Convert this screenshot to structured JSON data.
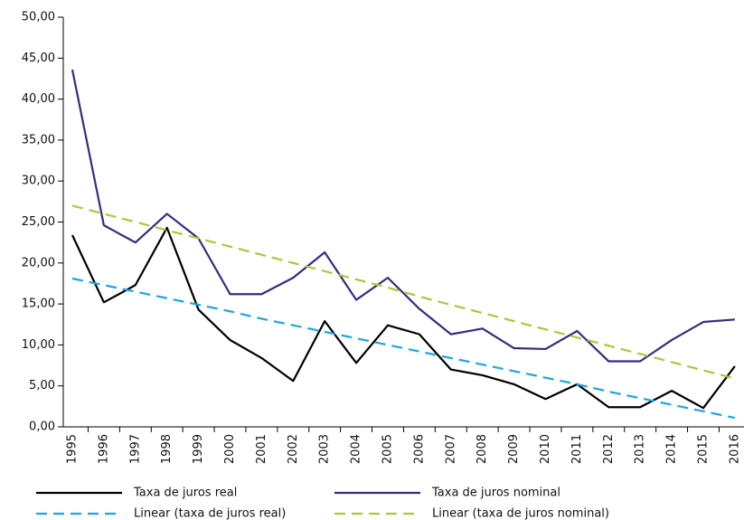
{
  "chart_data": {
    "type": "line",
    "categories": [
      "1995",
      "1996",
      "1997",
      "1998",
      "1999",
      "2000",
      "2001",
      "2002",
      "2003",
      "2004",
      "2005",
      "2006",
      "2007",
      "2008",
      "2009",
      "2010",
      "2011",
      "2012",
      "2013",
      "2014",
      "2015",
      "2016"
    ],
    "series": [
      {
        "name": "Taxa de juros real",
        "color": "#000000",
        "dashed": false,
        "values": [
          23.4,
          15.2,
          17.3,
          24.3,
          14.3,
          10.6,
          8.4,
          5.6,
          12.9,
          7.8,
          12.4,
          11.3,
          7.0,
          6.3,
          5.2,
          3.4,
          5.2,
          2.4,
          2.4,
          4.4,
          2.3,
          7.4
        ]
      },
      {
        "name": "Taxa de juros nominal",
        "color": "#3a2a80",
        "dashed": false,
        "values": [
          43.6,
          24.6,
          22.5,
          26.0,
          23.0,
          16.2,
          16.2,
          18.2,
          21.3,
          15.5,
          18.2,
          14.4,
          11.3,
          12.0,
          9.6,
          9.5,
          11.7,
          8.0,
          8.0,
          10.6,
          12.8,
          13.1
        ]
      },
      {
        "name": "Linear (taxa de juros real)",
        "color": "#1ea6dc",
        "dashed": true,
        "values": [
          18.1,
          17.3,
          16.5,
          15.7,
          14.9,
          14.1,
          13.2,
          12.4,
          11.6,
          10.8,
          10.0,
          9.2,
          8.4,
          7.6,
          6.8,
          6.0,
          5.2,
          4.3,
          3.5,
          2.7,
          1.9,
          1.1
        ]
      },
      {
        "name": "Linear (taxa de juros nominal)",
        "color": "#a8c93a",
        "dashed": true,
        "values": [
          27.0,
          26.0,
          25.0,
          24.0,
          23.0,
          22.0,
          21.0,
          20.0,
          19.0,
          18.0,
          17.0,
          15.9,
          14.9,
          13.9,
          12.9,
          11.9,
          10.9,
          9.9,
          8.9,
          7.9,
          6.9,
          5.9
        ]
      }
    ],
    "ylim": [
      0,
      50
    ],
    "yticks": [
      {
        "value": 0,
        "label": "0,00"
      },
      {
        "value": 5,
        "label": "5,00"
      },
      {
        "value": 10,
        "label": "10,00"
      },
      {
        "value": 15,
        "label": "15,00"
      },
      {
        "value": 20,
        "label": "20,00"
      },
      {
        "value": 25,
        "label": "25,00"
      },
      {
        "value": 30,
        "label": "30,00"
      },
      {
        "value": 35,
        "label": "35,00"
      },
      {
        "value": 40,
        "label": "40,00"
      },
      {
        "value": 45,
        "label": "45,00"
      },
      {
        "value": 50,
        "label": "50,00"
      }
    ],
    "grid": false
  }
}
